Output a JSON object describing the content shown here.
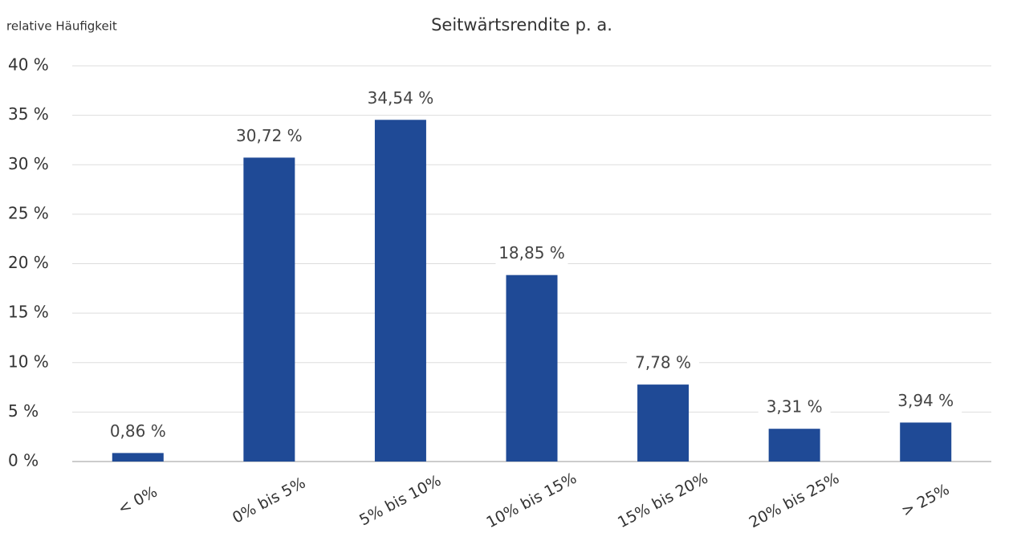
{
  "chart_data": {
    "type": "bar",
    "title": "Seitwärtsrendite p. a.",
    "y_label": "relative Häufigkeit",
    "categories": [
      "< 0%",
      "0% bis 5%",
      "5% bis 10%",
      "10% bis 15%",
      "15% bis 20%",
      "20% bis 25%",
      "> 25%"
    ],
    "values": [
      0.86,
      30.72,
      34.54,
      18.85,
      7.78,
      3.31,
      3.94
    ],
    "value_labels": [
      "0,86 %",
      "30,72 %",
      "34,54 %",
      "18,85 %",
      "7,78 %",
      "3,31 %",
      "3,94 %"
    ],
    "color": "#1f4a96",
    "ylim": [
      0,
      40
    ],
    "yticks": [
      {
        "value": 0,
        "label": "0 %"
      },
      {
        "value": 5,
        "label": "5 %"
      },
      {
        "value": 10,
        "label": "10 %"
      },
      {
        "value": 15,
        "label": "15 %"
      },
      {
        "value": 20,
        "label": "20 %"
      },
      {
        "value": 25,
        "label": "25 %"
      },
      {
        "value": 30,
        "label": "30 %"
      },
      {
        "value": 35,
        "label": "35 %"
      },
      {
        "value": 40,
        "label": "40 %"
      }
    ],
    "grid": true
  }
}
